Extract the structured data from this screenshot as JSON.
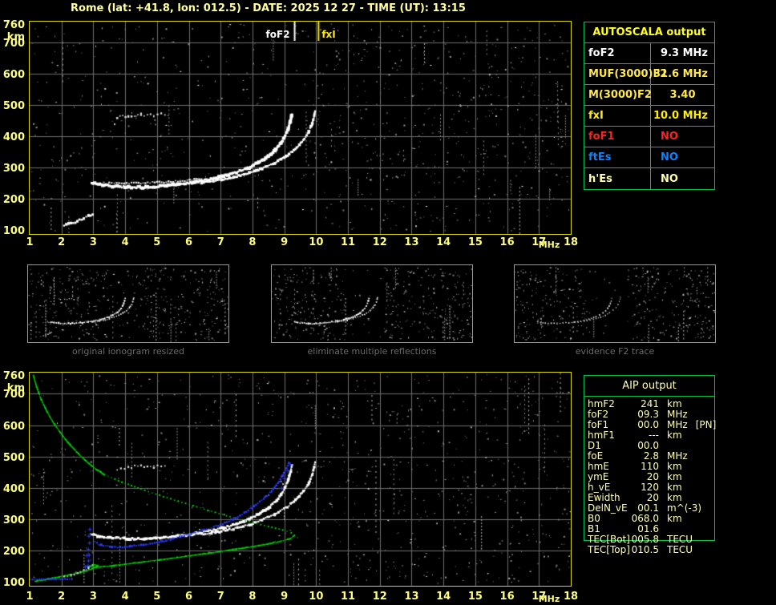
{
  "title": "Rome (lat: +41.8, lon: 012.5) - DATE: 2025 12 27 - TIME (UT): 13:15",
  "units": {
    "freq": "MHz",
    "height": "km"
  },
  "colors": {
    "title": "#ffff9c",
    "axis": "#ffff80",
    "plot_border": "#d8d800",
    "grid": "#6f6f6f",
    "table_border": "#00c050",
    "aip_text": "#ffffb4",
    "caption": "#6a6a6a",
    "trace_white": "#ffffff",
    "trace_blue": "#2a3cff",
    "profile_green": "#00d400"
  },
  "autoscala_table": {
    "header": "AUTOSCALA output",
    "rows": [
      {
        "label": "foF2",
        "value": "9.3 MHz",
        "color": "#ffffff",
        "align": "right"
      },
      {
        "label": "MUF(3000)F2",
        "value": "31.6 MHz",
        "color": "#ffe84a",
        "align": "right"
      },
      {
        "label": "M(3000)F2",
        "value": "3.40",
        "color": "#ffe84a",
        "align": "center"
      },
      {
        "label": "fxI",
        "value": "10.0 MHz",
        "color": "#ffee00",
        "align": "right"
      },
      {
        "label": "foF1",
        "value": "NO",
        "color": "#ff2222",
        "align": "left"
      },
      {
        "label": "ftEs",
        "value": "NO",
        "color": "#0a84ff",
        "align": "left"
      },
      {
        "label": "h'Es",
        "value": "NO",
        "color": "#ffffaa",
        "align": "left"
      }
    ]
  },
  "aip_table": {
    "header": "AIP output",
    "rows": [
      {
        "name": "hmF2",
        "value": "241",
        "unit": "km",
        "extra": ""
      },
      {
        "name": "foF2",
        "value": "09.3",
        "unit": "MHz",
        "extra": ""
      },
      {
        "name": "foF1",
        "value": "00.0",
        "unit": "MHz",
        "extra": "[PN]"
      },
      {
        "name": "hmF1",
        "value": "---",
        "unit": "km",
        "extra": ""
      },
      {
        "name": "D1",
        "value": "00.0",
        "unit": "",
        "extra": ""
      },
      {
        "name": "foE",
        "value": "2.8",
        "unit": "MHz",
        "extra": ""
      },
      {
        "name": "hmE",
        "value": "110",
        "unit": "km",
        "extra": ""
      },
      {
        "name": "ymE",
        "value": "20",
        "unit": "km",
        "extra": ""
      },
      {
        "name": "h_vE",
        "value": "120",
        "unit": "km",
        "extra": ""
      },
      {
        "name": "Ewidth",
        "value": "20",
        "unit": "km",
        "extra": ""
      },
      {
        "name": "DelN_vE",
        "value": "00.1",
        "unit": "m^(-3)",
        "extra": ""
      },
      {
        "name": "B0",
        "value": "068.0",
        "unit": "km",
        "extra": ""
      },
      {
        "name": "B1",
        "value": "01.6",
        "unit": "",
        "extra": ""
      },
      {
        "name": "TEC[Bot]",
        "value": "005.8",
        "unit": "TECU",
        "extra": ""
      },
      {
        "name": "TEC[Top]",
        "value": "010.5",
        "unit": "TECU",
        "extra": ""
      }
    ]
  },
  "captions": {
    "panel1": "original ionogram resized",
    "panel2": "eliminate multiple reflections",
    "panel3": "evidence F2 trace"
  },
  "chart_data": {
    "type": "scatter",
    "shared_traces": {
      "o_trace": [
        [
          2.95,
          252
        ],
        [
          3.2,
          245
        ],
        [
          3.6,
          240
        ],
        [
          4.1,
          237
        ],
        [
          4.6,
          237
        ],
        [
          5.1,
          240
        ],
        [
          5.6,
          245
        ],
        [
          6.1,
          252
        ],
        [
          6.6,
          261
        ],
        [
          7.1,
          272
        ],
        [
          7.5,
          285
        ],
        [
          7.9,
          300
        ],
        [
          8.2,
          316
        ],
        [
          8.5,
          335
        ],
        [
          8.72,
          356
        ],
        [
          8.9,
          378
        ],
        [
          9.02,
          400
        ],
        [
          9.12,
          424
        ],
        [
          9.19,
          448
        ],
        [
          9.24,
          470
        ]
      ],
      "o_double": [
        [
          3.5,
          252
        ],
        [
          4.2,
          250
        ],
        [
          5.0,
          252
        ],
        [
          5.8,
          257
        ],
        [
          6.4,
          264
        ]
      ],
      "x_trace": [
        [
          6.4,
          252
        ],
        [
          6.9,
          259
        ],
        [
          7.4,
          269
        ],
        [
          7.9,
          282
        ],
        [
          8.3,
          297
        ],
        [
          8.7,
          315
        ],
        [
          9.05,
          336
        ],
        [
          9.35,
          360
        ],
        [
          9.6,
          388
        ],
        [
          9.77,
          414
        ],
        [
          9.88,
          441
        ],
        [
          9.94,
          466
        ],
        [
          9.97,
          482
        ]
      ],
      "multiples": [
        [
          3.75,
          460
        ],
        [
          4.1,
          466
        ],
        [
          4.5,
          470
        ],
        [
          4.9,
          467
        ],
        [
          5.25,
          471
        ]
      ],
      "e_trace": [
        [
          2.08,
          116
        ],
        [
          2.3,
          122
        ],
        [
          2.5,
          128
        ],
        [
          2.7,
          138
        ],
        [
          2.85,
          146
        ],
        [
          2.98,
          152
        ]
      ],
      "blue_flat": [
        [
          1.02,
          108
        ],
        [
          1.6,
          108
        ],
        [
          2.33,
          108
        ]
      ],
      "blue_trace": [
        [
          3.05,
          228
        ],
        [
          3.25,
          216
        ],
        [
          3.6,
          210
        ],
        [
          4.0,
          211
        ],
        [
          4.5,
          217
        ],
        [
          5.0,
          226
        ],
        [
          5.5,
          237
        ],
        [
          6.0,
          250
        ],
        [
          6.5,
          265
        ],
        [
          7.0,
          282
        ],
        [
          7.4,
          300
        ],
        [
          7.75,
          320
        ],
        [
          8.05,
          341
        ],
        [
          8.35,
          364
        ],
        [
          8.6,
          389
        ],
        [
          8.8,
          415
        ],
        [
          8.95,
          440
        ],
        [
          9.07,
          463
        ],
        [
          9.14,
          478
        ]
      ],
      "blue_plus_col": [
        [
          2.82,
          152
        ],
        [
          2.84,
          168
        ],
        [
          2.86,
          186
        ],
        [
          2.83,
          205
        ],
        [
          2.87,
          225
        ],
        [
          2.85,
          247
        ],
        [
          2.88,
          268
        ],
        [
          2.79,
          185
        ],
        [
          2.74,
          149
        ]
      ],
      "blue_plus_top": [
        [
          8.9,
          400
        ],
        [
          9.0,
          430
        ],
        [
          9.1,
          455
        ],
        [
          9.18,
          475
        ]
      ],
      "green_upper": [
        [
          1.12,
          758
        ],
        [
          1.22,
          722
        ],
        [
          1.35,
          685
        ],
        [
          1.52,
          648
        ],
        [
          1.72,
          612
        ],
        [
          1.95,
          578
        ],
        [
          2.2,
          545
        ],
        [
          2.5,
          512
        ],
        [
          2.8,
          483
        ],
        [
          3.1,
          458
        ],
        [
          3.35,
          442
        ]
      ],
      "green_dotted": [
        [
          3.35,
          442
        ],
        [
          3.9,
          418
        ],
        [
          4.5,
          396
        ],
        [
          5.2,
          372
        ],
        [
          5.9,
          350
        ],
        [
          6.6,
          328
        ],
        [
          7.3,
          308
        ],
        [
          7.9,
          292
        ],
        [
          8.5,
          277
        ],
        [
          8.95,
          265
        ],
        [
          9.22,
          256
        ],
        [
          9.32,
          250
        ]
      ],
      "green_lower": [
        [
          9.32,
          248
        ],
        [
          9.2,
          238
        ],
        [
          8.8,
          227
        ],
        [
          8.2,
          215
        ],
        [
          7.5,
          204
        ],
        [
          6.7,
          192
        ],
        [
          5.9,
          181
        ],
        [
          5.1,
          170
        ],
        [
          4.3,
          160
        ],
        [
          3.6,
          151
        ],
        [
          3.1,
          146
        ],
        [
          2.88,
          149
        ],
        [
          3.0,
          156
        ],
        [
          3.15,
          152
        ],
        [
          2.95,
          140
        ],
        [
          2.6,
          130
        ],
        [
          2.2,
          121
        ],
        [
          1.8,
          113
        ],
        [
          1.45,
          106
        ],
        [
          1.18,
          101
        ]
      ]
    },
    "top_plot": {
      "x_label": "MHz",
      "y_label": "km",
      "x_range": [
        1,
        18
      ],
      "y_range": [
        100,
        760
      ],
      "x_ticks": [
        1,
        2,
        3,
        4,
        5,
        6,
        7,
        8,
        9,
        10,
        11,
        12,
        13,
        14,
        15,
        16,
        17,
        18
      ],
      "y_ticks": [
        760,
        700,
        600,
        500,
        400,
        300,
        200,
        100
      ],
      "grid": {
        "v_mhz": [
          2,
          3,
          4,
          5,
          6,
          7,
          8,
          9,
          10,
          11,
          12,
          13,
          14,
          15,
          16,
          17
        ],
        "h_km": [
          200,
          300,
          400,
          500,
          600,
          700
        ]
      },
      "noise": {
        "seed": 7,
        "dots": 850,
        "whites": 55,
        "streaks": 24,
        "bands": [
          [
            0,
            0.5,
            0.8
          ],
          [
            0.5,
            1,
            1.25
          ]
        ]
      },
      "markers": [
        {
          "mhz": 9.3,
          "label": "foF2",
          "color": "#ffffff",
          "side": "left"
        },
        {
          "mhz": 10.05,
          "label": "fxI",
          "color": "#ffe800",
          "side": "right"
        }
      ],
      "traces": [
        {
          "ref": "o_trace",
          "color": "#ffffff",
          "size": 3.4,
          "step": 2.0,
          "jitter": 1.1
        },
        {
          "ref": "o_double",
          "color": "#e8e8e8",
          "size": 2.0,
          "step": 3.0,
          "jitter": 1.0
        },
        {
          "ref": "x_trace",
          "color": "#ffffff",
          "size": 2.8,
          "step": 2.4,
          "jitter": 1.0
        },
        {
          "ref": "multiples",
          "color": "#e0e0e0",
          "size": 2.0,
          "step": 4.0,
          "jitter": 1.6
        },
        {
          "ref": "e_trace",
          "color": "#ffffff",
          "size": 2.6,
          "step": 3.0,
          "jitter": 1.2
        }
      ]
    },
    "bottom_plot": {
      "x_label": "MHz",
      "y_label": "km",
      "x_range": [
        1,
        18
      ],
      "y_range": [
        100,
        760
      ],
      "x_ticks": [
        1,
        2,
        3,
        4,
        5,
        6,
        7,
        8,
        9,
        10,
        11,
        12,
        13,
        14,
        15,
        16,
        17,
        18
      ],
      "y_ticks": [
        760,
        700,
        600,
        500,
        400,
        300,
        200,
        100
      ],
      "grid": {
        "v_mhz": [
          2,
          3,
          4,
          5,
          6,
          7,
          8,
          9,
          10,
          11,
          12,
          13,
          14,
          15,
          16,
          17
        ],
        "h_km": [
          200,
          300,
          400,
          500,
          600,
          700
        ]
      },
      "noise": {
        "seed": 13,
        "dots": 850,
        "whites": 55,
        "streaks": 24,
        "bands": [
          [
            0,
            0.5,
            0.85
          ],
          [
            0.5,
            1,
            1.2
          ]
        ]
      },
      "markers": [],
      "traces": [
        {
          "ref": "o_trace",
          "color": "#ffffff",
          "size": 2.9,
          "step": 2.5,
          "jitter": 1.0
        },
        {
          "ref": "x_trace",
          "color": "#ffffff",
          "size": 2.6,
          "step": 2.6,
          "jitter": 1.0
        },
        {
          "ref": "multiples",
          "color": "#dcdcdc",
          "size": 2.0,
          "step": 4.2,
          "jitter": 1.6
        },
        {
          "ref": "green_upper",
          "color": "#00d400",
          "size": 1.7,
          "step": 1.8,
          "jitter": 0.3
        },
        {
          "ref": "green_dotted",
          "color": "#00d400",
          "size": 1.6,
          "step": 4.6,
          "jitter": 0.3
        },
        {
          "ref": "green_lower",
          "color": "#00d400",
          "size": 1.7,
          "step": 1.8,
          "jitter": 0.3
        },
        {
          "ref": "blue_flat",
          "color": "#2a3cff",
          "size": 2.0,
          "step": 3.0,
          "jitter": 0.5
        },
        {
          "ref": "blue_trace",
          "color": "#2a3cff",
          "size": 2.2,
          "step": 3.0,
          "jitter": 0.8
        },
        {
          "ref": "blue_plus_col",
          "color": "#2a3cff",
          "marker": "plus"
        },
        {
          "ref": "blue_plus_top",
          "color": "#2a3cff",
          "marker": "plus"
        },
        {
          "ref": "e_trace",
          "color": "#d8d8d8",
          "size": 1.8,
          "step": 4.0,
          "jitter": 1.4
        }
      ]
    },
    "panels": [
      {
        "x_range": [
          1,
          18
        ],
        "y_range": [
          100,
          760
        ],
        "noise": {
          "seed": 21,
          "dots": 400,
          "whites": 42,
          "streaks": 16,
          "bands": [
            [
              0,
              0.36,
              1
            ],
            [
              0.36,
              0.56,
              0.3
            ],
            [
              0.56,
              1,
              1
            ]
          ]
        },
        "traces": [
          {
            "ref": "o_trace",
            "color": "#ffffff",
            "size": 1.7,
            "step": 2.4,
            "jitter": 0.6
          },
          {
            "ref": "x_trace",
            "color": "#f0f0f0",
            "size": 1.4,
            "step": 2.8,
            "jitter": 0.6
          },
          {
            "ref": "multiples",
            "color": "#cccccc",
            "size": 1.2,
            "step": 3.5,
            "jitter": 0.8
          },
          {
            "ref": "e_trace",
            "color": "#cccccc",
            "size": 1.2,
            "step": 3.0,
            "jitter": 0.6
          }
        ]
      },
      {
        "x_range": [
          1,
          18
        ],
        "y_range": [
          100,
          760
        ],
        "noise": {
          "seed": 22,
          "dots": 380,
          "whites": 40,
          "streaks": 14,
          "bands": [
            [
              0,
              0.36,
              1
            ],
            [
              0.36,
              0.56,
              0.2
            ],
            [
              0.56,
              1,
              1
            ]
          ]
        },
        "traces": [
          {
            "ref": "o_trace",
            "color": "#ffffff",
            "size": 1.7,
            "step": 2.4,
            "jitter": 0.6
          },
          {
            "ref": "x_trace",
            "color": "#f0f0f0",
            "size": 1.4,
            "step": 2.8,
            "jitter": 0.6
          }
        ]
      },
      {
        "x_range": [
          1,
          18
        ],
        "y_range": [
          100,
          760
        ],
        "noise": {
          "seed": 23,
          "dots": 360,
          "whites": 38,
          "streaks": 14,
          "bands": [
            [
              0,
              0.36,
              1
            ],
            [
              0.36,
              0.56,
              0.15
            ],
            [
              0.56,
              1,
              1
            ]
          ]
        },
        "traces": [
          {
            "ref": "o_trace",
            "color": "#d8d8d8",
            "size": 1.4,
            "step": 3.4,
            "jitter": 0.6
          },
          {
            "ref": "x_trace",
            "color": "#c8c8c8",
            "size": 1.2,
            "step": 3.8,
            "jitter": 0.6
          }
        ]
      }
    ]
  }
}
